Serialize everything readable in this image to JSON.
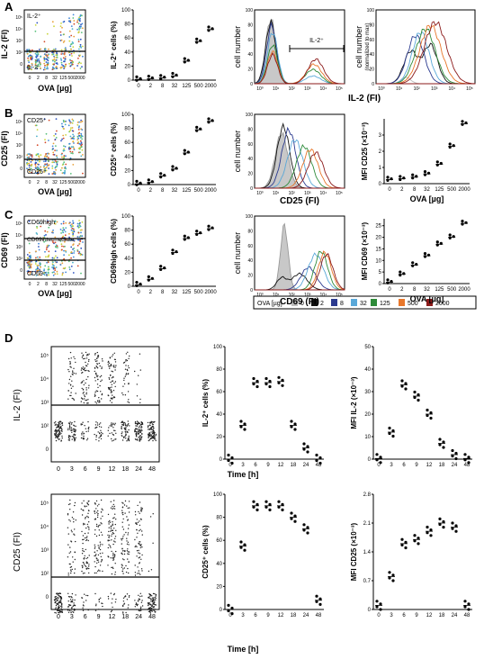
{
  "panel_letters": [
    "A",
    "B",
    "C",
    "D"
  ],
  "ova_doses": [
    "0",
    "2",
    "8",
    "32",
    "125",
    "500",
    "2000"
  ],
  "time_points": [
    "0",
    "3",
    "6",
    "9",
    "12",
    "18",
    "24",
    "48"
  ],
  "legend": {
    "title": "OVA [µg]",
    "items": [
      {
        "label": "0",
        "color": "#bdbdbd"
      },
      {
        "label": "2",
        "color": "#111111"
      },
      {
        "label": "8",
        "color": "#2b3a8f"
      },
      {
        "label": "32",
        "color": "#5aa8d8"
      },
      {
        "label": "125",
        "color": "#2e8b3a"
      },
      {
        "label": "500",
        "color": "#e8772b"
      },
      {
        "label": "2000",
        "color": "#8b1a1a"
      }
    ]
  },
  "text": {
    "A": {
      "flow_ylabel": "IL-2 (FI)",
      "gate_hi": "IL-2⁺",
      "gate_lo": "IL-2⁻",
      "pct_ylabel": "IL-2⁺ cells (%)",
      "xlabel": "OVA [µg]",
      "hist_ylabel": "cell number",
      "hist_marker": "IL-2⁺",
      "hist2_ylabel_1": "cell number",
      "hist2_ylabel_2": "(normalized to max)",
      "hist_xlabel": "IL-2 (FI)"
    },
    "B": {
      "flow_ylabel": "CD25 (FI)",
      "gate_hi": "CD25⁺",
      "gate_lo": "CD25⁻",
      "pct_ylabel": "CD25⁺ cells (%)",
      "xlabel": "OVA [µg]",
      "hist_ylabel": "cell number",
      "hist_xlabel": "CD25 (FI)",
      "mfi_ylabel": "MFI CD25 (×10⁻³)",
      "mfi_xlabel": "OVA [µg]"
    },
    "C": {
      "flow_ylabel": "CD69 (FI)",
      "gate_hi": "CD69high",
      "gate_mid": "CD69intermediate",
      "gate_lo": "CD69⁻",
      "pct_ylabel": "CD69high cells (%)",
      "xlabel": "OVA [µg]",
      "hist_ylabel": "cell number",
      "hist_xlabel": "CD69 (FI)",
      "mfi_ylabel": "MFI CD69 (×10⁻³)",
      "mfi_xlabel": "OVA [µg]"
    },
    "D": {
      "flow1_ylabel": "IL-2 (FI)",
      "pct1_ylabel": "IL-2⁺ cells (%)",
      "mfi1_ylabel": "MFI IL-2 (×10⁻³)",
      "flow2_ylabel": "CD25 (FI)",
      "pct2_ylabel": "CD25⁺ cells (%)",
      "mfi2_ylabel": "MFI CD25 (×10⁻³)",
      "xlabel": "Time [h]"
    }
  },
  "chart_data": [
    {
      "id": "A-pct",
      "type": "scatter",
      "categories": [
        "0",
        "2",
        "8",
        "32",
        "125",
        "500",
        "2000"
      ],
      "values": [
        1,
        2,
        3,
        6,
        27,
        55,
        72
      ],
      "ylim": [
        0,
        100
      ],
      "yticks": [
        "0",
        "20",
        "40",
        "60",
        "80",
        "100"
      ]
    },
    {
      "id": "B-pct",
      "type": "scatter",
      "categories": [
        "0",
        "2",
        "8",
        "32",
        "125",
        "500",
        "2000"
      ],
      "values": [
        1,
        3,
        12,
        22,
        45,
        78,
        90
      ],
      "ylim": [
        0,
        100
      ],
      "yticks": [
        "0",
        "20",
        "40",
        "60",
        "80",
        "100"
      ]
    },
    {
      "id": "C-pct",
      "type": "scatter",
      "categories": [
        "0",
        "2",
        "8",
        "32",
        "125",
        "500",
        "2000"
      ],
      "values": [
        2,
        10,
        25,
        48,
        68,
        75,
        82
      ],
      "ylim": [
        0,
        100
      ],
      "yticks": [
        "0",
        "20",
        "40",
        "60",
        "80",
        "100"
      ]
    },
    {
      "id": "B-mfi",
      "type": "scatter",
      "categories": [
        "0",
        "2",
        "8",
        "32",
        "125",
        "500",
        "2000"
      ],
      "values": [
        0.25,
        0.3,
        0.4,
        0.6,
        1.2,
        2.3,
        3.7
      ],
      "ylim": [
        0,
        4
      ],
      "yticks": [
        "0",
        "1",
        "2",
        "3"
      ]
    },
    {
      "id": "C-mfi",
      "type": "scatter",
      "categories": [
        "0",
        "2",
        "8",
        "32",
        "125",
        "500",
        "2000"
      ],
      "values": [
        0.6,
        4,
        8,
        12,
        17,
        20,
        26
      ],
      "ylim": [
        0,
        28
      ],
      "yticks": [
        "0",
        "5",
        "10",
        "15",
        "20",
        "25"
      ]
    },
    {
      "id": "D-pct1",
      "type": "scatter",
      "categories": [
        "0",
        "3",
        "6",
        "9",
        "12",
        "18",
        "24",
        "48"
      ],
      "values": [
        0,
        30,
        68,
        68,
        69,
        30,
        10,
        0
      ],
      "ylim": [
        0,
        100
      ],
      "yticks": [
        "0",
        "20",
        "40",
        "60",
        "80",
        "100"
      ]
    },
    {
      "id": "D-mfi1",
      "type": "scatter",
      "categories": [
        "0",
        "3",
        "6",
        "9",
        "12",
        "18",
        "24",
        "48"
      ],
      "values": [
        0.3,
        12,
        33,
        28,
        20,
        7,
        2,
        0.3
      ],
      "ylim": [
        0,
        50
      ],
      "yticks": [
        "0",
        "10",
        "20",
        "30",
        "40",
        "50"
      ]
    },
    {
      "id": "D-pct2",
      "type": "scatter",
      "categories": [
        "0",
        "3",
        "6",
        "9",
        "12",
        "18",
        "24",
        "48"
      ],
      "values": [
        0,
        55,
        90,
        90,
        90,
        80,
        70,
        8
      ],
      "ylim": [
        0,
        100
      ],
      "yticks": [
        "0",
        "20",
        "40",
        "60",
        "80",
        "100"
      ]
    },
    {
      "id": "D-mfi2",
      "type": "scatter",
      "categories": [
        "0",
        "3",
        "6",
        "9",
        "12",
        "18",
        "24",
        "48"
      ],
      "values": [
        0.1,
        0.8,
        1.6,
        1.7,
        1.9,
        2.1,
        2.0,
        0.1
      ],
      "ylim": [
        0,
        2.8
      ],
      "yticks": [
        "0",
        "0.7",
        "1.4",
        "2.1",
        "2.8"
      ]
    }
  ]
}
